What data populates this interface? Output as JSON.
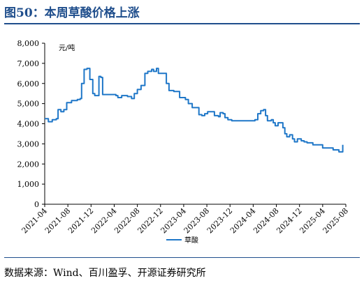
{
  "header": {
    "title": "图50：本周草酸价格上涨"
  },
  "footer": {
    "source": "数据来源：Wind、百川盈孚、开源证券研究所"
  },
  "chart_data": {
    "type": "line",
    "title": "图50：本周草酸价格上涨",
    "unit": "元/吨",
    "ylim": [
      0,
      8000
    ],
    "y_ticks": [
      "0",
      "1,000",
      "2,000",
      "3,000",
      "4,000",
      "5,000",
      "6,000",
      "7,000",
      "8,000"
    ],
    "y_tick_values": [
      0,
      1000,
      2000,
      3000,
      4000,
      5000,
      6000,
      7000,
      8000
    ],
    "x_range": [
      "2021-04",
      "2025-08"
    ],
    "x_ticks": [
      "2021-04",
      "2021-08",
      "2021-12",
      "2022-04",
      "2022-08",
      "2022-12",
      "2023-04",
      "2023-08",
      "2023-12",
      "2024-04",
      "2024-08",
      "2024-12",
      "2025-04",
      "2025-08"
    ],
    "grid": false,
    "legend_position": "bottom",
    "colors": {
      "series": "#1f77c8",
      "title": "#1f4e8c"
    },
    "series": [
      {
        "name": "草酸",
        "points": [
          [
            "2021-04-01",
            4250
          ],
          [
            "2021-04-20",
            4100
          ],
          [
            "2021-05-10",
            4200
          ],
          [
            "2021-06-01",
            4250
          ],
          [
            "2021-06-10",
            4700
          ],
          [
            "2021-06-25",
            4600
          ],
          [
            "2021-07-10",
            4700
          ],
          [
            "2021-07-25",
            5050
          ],
          [
            "2021-08-20",
            5150
          ],
          [
            "2021-09-20",
            5200
          ],
          [
            "2021-10-05",
            5250
          ],
          [
            "2021-10-12",
            6000
          ],
          [
            "2021-10-25",
            6700
          ],
          [
            "2021-11-10",
            6750
          ],
          [
            "2021-11-25",
            6200
          ],
          [
            "2021-12-10",
            5500
          ],
          [
            "2021-12-20",
            5400
          ],
          [
            "2022-01-05",
            5400
          ],
          [
            "2022-01-12",
            6350
          ],
          [
            "2022-01-22",
            6300
          ],
          [
            "2022-02-01",
            5450
          ],
          [
            "2022-03-01",
            5450
          ],
          [
            "2022-04-10",
            5400
          ],
          [
            "2022-04-20",
            5300
          ],
          [
            "2022-05-10",
            5400
          ],
          [
            "2022-06-10",
            5350
          ],
          [
            "2022-07-01",
            5250
          ],
          [
            "2022-07-15",
            5500
          ],
          [
            "2022-08-01",
            5700
          ],
          [
            "2022-08-20",
            5900
          ],
          [
            "2022-09-10",
            6500
          ],
          [
            "2022-09-25",
            6600
          ],
          [
            "2022-10-15",
            6700
          ],
          [
            "2022-10-25",
            6600
          ],
          [
            "2022-11-10",
            6750
          ],
          [
            "2022-11-20",
            6500
          ],
          [
            "2022-12-20",
            6500
          ],
          [
            "2023-01-01",
            6000
          ],
          [
            "2023-01-15",
            5650
          ],
          [
            "2023-02-10",
            5600
          ],
          [
            "2023-03-10",
            5300
          ],
          [
            "2023-04-10",
            5200
          ],
          [
            "2023-04-25",
            5000
          ],
          [
            "2023-05-15",
            4800
          ],
          [
            "2023-06-05",
            4800
          ],
          [
            "2023-06-20",
            4450
          ],
          [
            "2023-07-05",
            4400
          ],
          [
            "2023-07-20",
            4500
          ],
          [
            "2023-08-05",
            4600
          ],
          [
            "2023-08-25",
            4600
          ],
          [
            "2023-09-10",
            4400
          ],
          [
            "2023-10-01",
            4350
          ],
          [
            "2023-10-10",
            4550
          ],
          [
            "2023-10-25",
            4500
          ],
          [
            "2023-11-05",
            4300
          ],
          [
            "2023-11-20",
            4200
          ],
          [
            "2023-12-10",
            4150
          ],
          [
            "2024-01-10",
            4150
          ],
          [
            "2024-02-20",
            4150
          ],
          [
            "2024-03-25",
            4150
          ],
          [
            "2024-04-10",
            4200
          ],
          [
            "2024-04-25",
            4500
          ],
          [
            "2024-05-10",
            4650
          ],
          [
            "2024-05-25",
            4700
          ],
          [
            "2024-06-05",
            4400
          ],
          [
            "2024-06-15",
            4150
          ],
          [
            "2024-07-05",
            4200
          ],
          [
            "2024-07-15",
            4050
          ],
          [
            "2024-07-25",
            3900
          ],
          [
            "2024-08-10",
            4050
          ],
          [
            "2024-08-25",
            4050
          ],
          [
            "2024-09-05",
            3800
          ],
          [
            "2024-09-15",
            3500
          ],
          [
            "2024-09-25",
            3350
          ],
          [
            "2024-10-10",
            3450
          ],
          [
            "2024-10-25",
            3250
          ],
          [
            "2024-11-05",
            3100
          ],
          [
            "2024-11-20",
            3250
          ],
          [
            "2024-12-10",
            3150
          ],
          [
            "2024-12-25",
            3100
          ],
          [
            "2025-01-10",
            3050
          ],
          [
            "2025-02-10",
            2950
          ],
          [
            "2025-03-15",
            2950
          ],
          [
            "2025-04-01",
            2800
          ],
          [
            "2025-05-10",
            2800
          ],
          [
            "2025-05-25",
            2700
          ],
          [
            "2025-06-10",
            2700
          ],
          [
            "2025-06-25",
            2600
          ],
          [
            "2025-07-10",
            2600
          ],
          [
            "2025-07-15",
            2950
          ]
        ]
      }
    ]
  }
}
